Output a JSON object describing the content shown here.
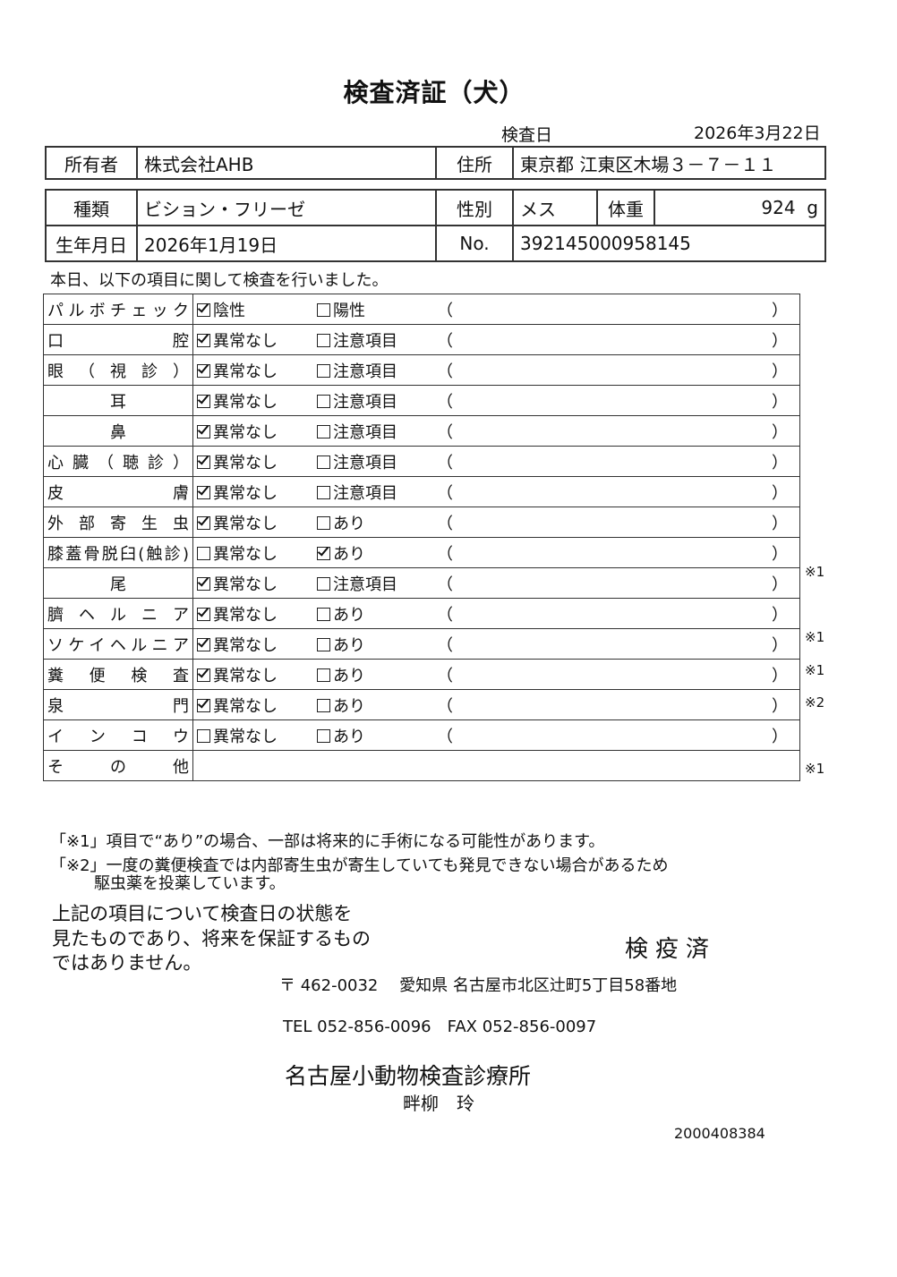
{
  "title": "検査済証（犬）",
  "exam_date_label": "検査日",
  "exam_date": "2026年3月22日",
  "owner": {
    "label": "所有者",
    "value": "株式会社AHB",
    "address_label": "住所",
    "address": "東京都 江東区木場３－７－１１"
  },
  "pet": {
    "breed_label": "種類",
    "breed": "ビション・フリーゼ",
    "sex_label": "性別",
    "sex": "メス",
    "weight_label": "体重",
    "weight": "924",
    "weight_unit": "g",
    "birth_label": "生年月日",
    "birth": "2026年1月19日",
    "no_label": "No.",
    "no": "392145000958145"
  },
  "intro": "本日、以下の項目に関して検査を行いました。",
  "paren_open": "（",
  "paren_close": "）",
  "rows": [
    {
      "label": "パルボチェック",
      "align": "just",
      "opt1": "陰性",
      "opt1_checked": true,
      "opt2": "陽性",
      "opt2_checked": false,
      "note": ""
    },
    {
      "label": "口腔",
      "align": "just",
      "opt1": "異常なし",
      "opt1_checked": true,
      "opt2": "注意項目",
      "opt2_checked": false,
      "note": ""
    },
    {
      "label": "眼（視診）",
      "align": "just",
      "opt1": "異常なし",
      "opt1_checked": true,
      "opt2": "注意項目",
      "opt2_checked": false,
      "note": ""
    },
    {
      "label": "耳",
      "align": "cen",
      "opt1": "異常なし",
      "opt1_checked": true,
      "opt2": "注意項目",
      "opt2_checked": false,
      "note": ""
    },
    {
      "label": "鼻",
      "align": "cen",
      "opt1": "異常なし",
      "opt1_checked": true,
      "opt2": "注意項目",
      "opt2_checked": false,
      "note": ""
    },
    {
      "label": "心臓（聴診）",
      "align": "just",
      "opt1": "異常なし",
      "opt1_checked": true,
      "opt2": "注意項目",
      "opt2_checked": false,
      "note": ""
    },
    {
      "label": "皮膚",
      "align": "just",
      "opt1": "異常なし",
      "opt1_checked": true,
      "opt2": "注意項目",
      "opt2_checked": false,
      "note": ""
    },
    {
      "label": "外部寄生虫",
      "align": "just",
      "opt1": "異常なし",
      "opt1_checked": true,
      "opt2": "あり",
      "opt2_checked": false,
      "note": ""
    },
    {
      "label": "膝蓋骨脱臼(触診)",
      "align": "just",
      "opt1": "異常なし",
      "opt1_checked": false,
      "opt2": "あり",
      "opt2_checked": true,
      "note": "※1"
    },
    {
      "label": "尾",
      "align": "cen",
      "opt1": "異常なし",
      "opt1_checked": true,
      "opt2": "注意項目",
      "opt2_checked": false,
      "note": ""
    },
    {
      "label": "臍ヘルニア",
      "align": "just",
      "opt1": "異常なし",
      "opt1_checked": true,
      "opt2": "あり",
      "opt2_checked": false,
      "note": "※1"
    },
    {
      "label": "ソケイヘルニア",
      "align": "just",
      "opt1": "異常なし",
      "opt1_checked": true,
      "opt2": "あり",
      "opt2_checked": false,
      "note": "※1"
    },
    {
      "label": "糞便検査",
      "align": "just",
      "opt1": "異常なし",
      "opt1_checked": true,
      "opt2": "あり",
      "opt2_checked": false,
      "note": "※2"
    },
    {
      "label": "泉門",
      "align": "just",
      "opt1": "異常なし",
      "opt1_checked": true,
      "opt2": "あり",
      "opt2_checked": false,
      "note": ""
    },
    {
      "label": "インコウ",
      "align": "just",
      "opt1": "異常なし",
      "opt1_checked": false,
      "opt2": "あり",
      "opt2_checked": false,
      "note": "※1"
    }
  ],
  "other_label": "その他",
  "footnote1": "「※1」項目で“あり”の場合、一部は将来的に手術になる可能性があります。",
  "footnote2": "「※2」一度の糞便検査では内部寄生虫が寄生していても発見できない場合があるため",
  "footnote2_cont": "駆虫薬を投薬しています。",
  "disclaimer": [
    "上記の項目について検査日の状態を",
    "見たものであり、将来を保証するもの",
    "ではありません。"
  ],
  "stamp": "検疫済",
  "clinic_address": "〒 462-0032　 愛知県 名古屋市北区辻町5丁目58番地",
  "clinic_tel": "TEL 052-856-0096　FAX 052-856-0097",
  "clinic_name": "名古屋小動物検査診療所",
  "vet_name": "畔柳　玲",
  "doc_number": "2000408384"
}
